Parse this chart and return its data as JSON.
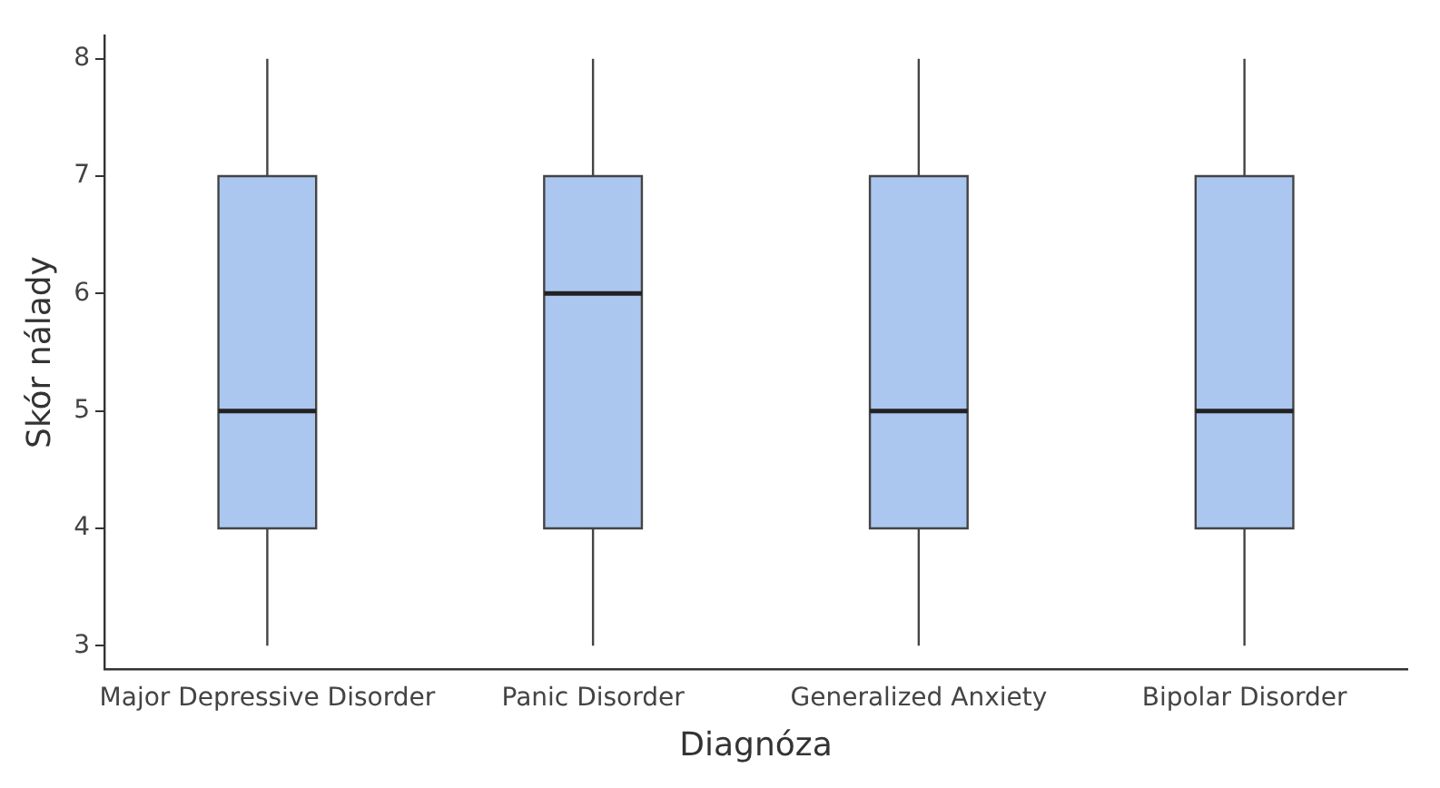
{
  "chart_data": {
    "type": "box",
    "xlabel": "Diagnóza",
    "ylabel": "Skór nálady",
    "categories": [
      "Major Depressive Disorder",
      "Panic Disorder",
      "Generalized Anxiety",
      "Bipolar Disorder"
    ],
    "boxes": [
      {
        "low": 3,
        "q1": 4,
        "median": 5,
        "q3": 7,
        "high": 8
      },
      {
        "low": 3,
        "q1": 4,
        "median": 6,
        "q3": 7,
        "high": 8
      },
      {
        "low": 3,
        "q1": 4,
        "median": 5,
        "q3": 7,
        "high": 8
      },
      {
        "low": 3,
        "q1": 4,
        "median": 5,
        "q3": 7,
        "high": 8
      }
    ],
    "color": "#abc7f0",
    "ylim": [
      2.8,
      8.2
    ],
    "yticks": [
      3,
      4,
      5,
      6,
      7,
      8
    ],
    "grid": false,
    "legend": false
  }
}
